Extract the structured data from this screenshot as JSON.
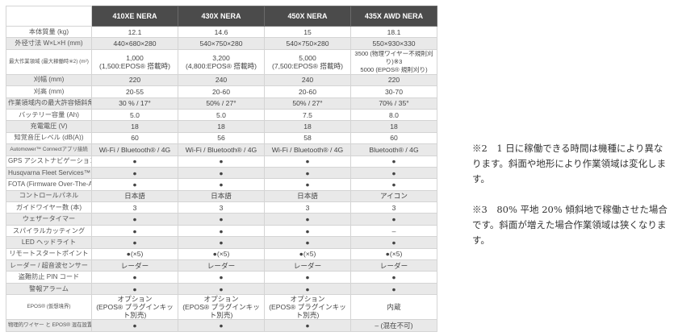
{
  "table": {
    "columns": [
      "410XE NERA",
      "430X NERA",
      "450X NERA",
      "435X AWD NERA"
    ],
    "rows": [
      {
        "label": "本体質量 (kg)",
        "values": [
          "12.1",
          "14.6",
          "15",
          "18.1"
        ]
      },
      {
        "label": "外径寸法 W×L×H (mm)",
        "values": [
          "440×680×280",
          "540×750×280",
          "540×750×280",
          "550×930×330"
        ]
      },
      {
        "label": "最大作業領域 (最大稼働時※2) (m²)",
        "small": true,
        "tall": true,
        "values": [
          "1,000\n(1,500:EPOS® 搭載時)",
          "3,200\n(4,800:EPOS® 搭載時)",
          "5,000\n(7,500:EPOS® 搭載時)",
          "3500 (物理ワイヤー不規則刈り)※3\n5000 (EPOS® 規則刈り)"
        ]
      },
      {
        "label": "刈幅 (mm)",
        "values": [
          "220",
          "240",
          "240",
          "220"
        ]
      },
      {
        "label": "刈高 (mm)",
        "values": [
          "20-55",
          "20-60",
          "20-60",
          "30-70"
        ]
      },
      {
        "label": "作業領域内の最大許容傾斜角",
        "values": [
          "30 % / 17°",
          "50% / 27°",
          "50% / 27°",
          "70% / 35°"
        ]
      },
      {
        "label": "バッテリー容量 (Ah)",
        "values": [
          "5.0",
          "5.0",
          "7.5",
          "8.0"
        ]
      },
      {
        "label": "充電電圧 (V)",
        "values": [
          "18",
          "18",
          "18",
          "18"
        ]
      },
      {
        "label": "知覚音圧レベル (dB(A))",
        "values": [
          "60",
          "56",
          "58",
          "60"
        ]
      },
      {
        "label": "Automower™ Connectアプリ接続",
        "small": true,
        "values": [
          "Wi-Fi / Bluetooth® / 4G",
          "Wi-Fi / Bluetooth® / 4G",
          "Wi-Fi / Bluetooth® / 4G",
          "Bluetooth® / 4G"
        ]
      },
      {
        "label": "GPS アシストナビゲーション",
        "values": [
          "●",
          "●",
          "●",
          "●"
        ]
      },
      {
        "label": "Husqvarna Fleet Services™",
        "values": [
          "●",
          "●",
          "●",
          "●"
        ]
      },
      {
        "label": "FOTA (Firmware Over-The-Air)",
        "values": [
          "●",
          "●",
          "●",
          "●"
        ]
      },
      {
        "label": "コントロールパネル",
        "values": [
          "日本語",
          "日本語",
          "日本語",
          "アイコン"
        ]
      },
      {
        "label": "ガイドワイヤー数 (本)",
        "values": [
          "3",
          "3",
          "3",
          "3"
        ]
      },
      {
        "label": "ウェザータイマー",
        "values": [
          "●",
          "●",
          "●",
          "●"
        ]
      },
      {
        "label": "スパイラルカッティング",
        "values": [
          "●",
          "●",
          "●",
          "–"
        ]
      },
      {
        "label": "LED ヘッドライト",
        "values": [
          "●",
          "●",
          "●",
          "●"
        ]
      },
      {
        "label": "リモートスタートポイント",
        "values": [
          "●(×5)",
          "●(×5)",
          "●(×5)",
          "●(×5)"
        ]
      },
      {
        "label": "レーダー / 超音波センサー",
        "values": [
          "レーダー",
          "レーダー",
          "レーダー",
          "レーダー"
        ]
      },
      {
        "label": "盗難防止 PIN コード",
        "values": [
          "●",
          "●",
          "●",
          "●"
        ]
      },
      {
        "label": "警報アラーム",
        "values": [
          "●",
          "●",
          "●",
          "●"
        ]
      },
      {
        "label": "EPOS® (仮想境界)",
        "small": true,
        "tall": true,
        "values": [
          "オプション\n(EPOS® プラグインキット別売)",
          "オプション\n(EPOS® プラグインキット別売)",
          "オプション\n(EPOS® プラグインキット別売)",
          "内蔵"
        ]
      },
      {
        "label": "物理的ワイヤー と EPOS® 混在設置",
        "small": true,
        "values": [
          "●",
          "●",
          "●",
          "– (混在不可)"
        ]
      }
    ]
  },
  "notes": [
    "※2　1 日に稼働できる時間は機種により異なります。斜面や地形により作業領域は変化します。",
    "※3　80% 平地 20% 傾斜地で稼働させた場合です。斜面が増えた場合作業領域は狭くなります。"
  ]
}
